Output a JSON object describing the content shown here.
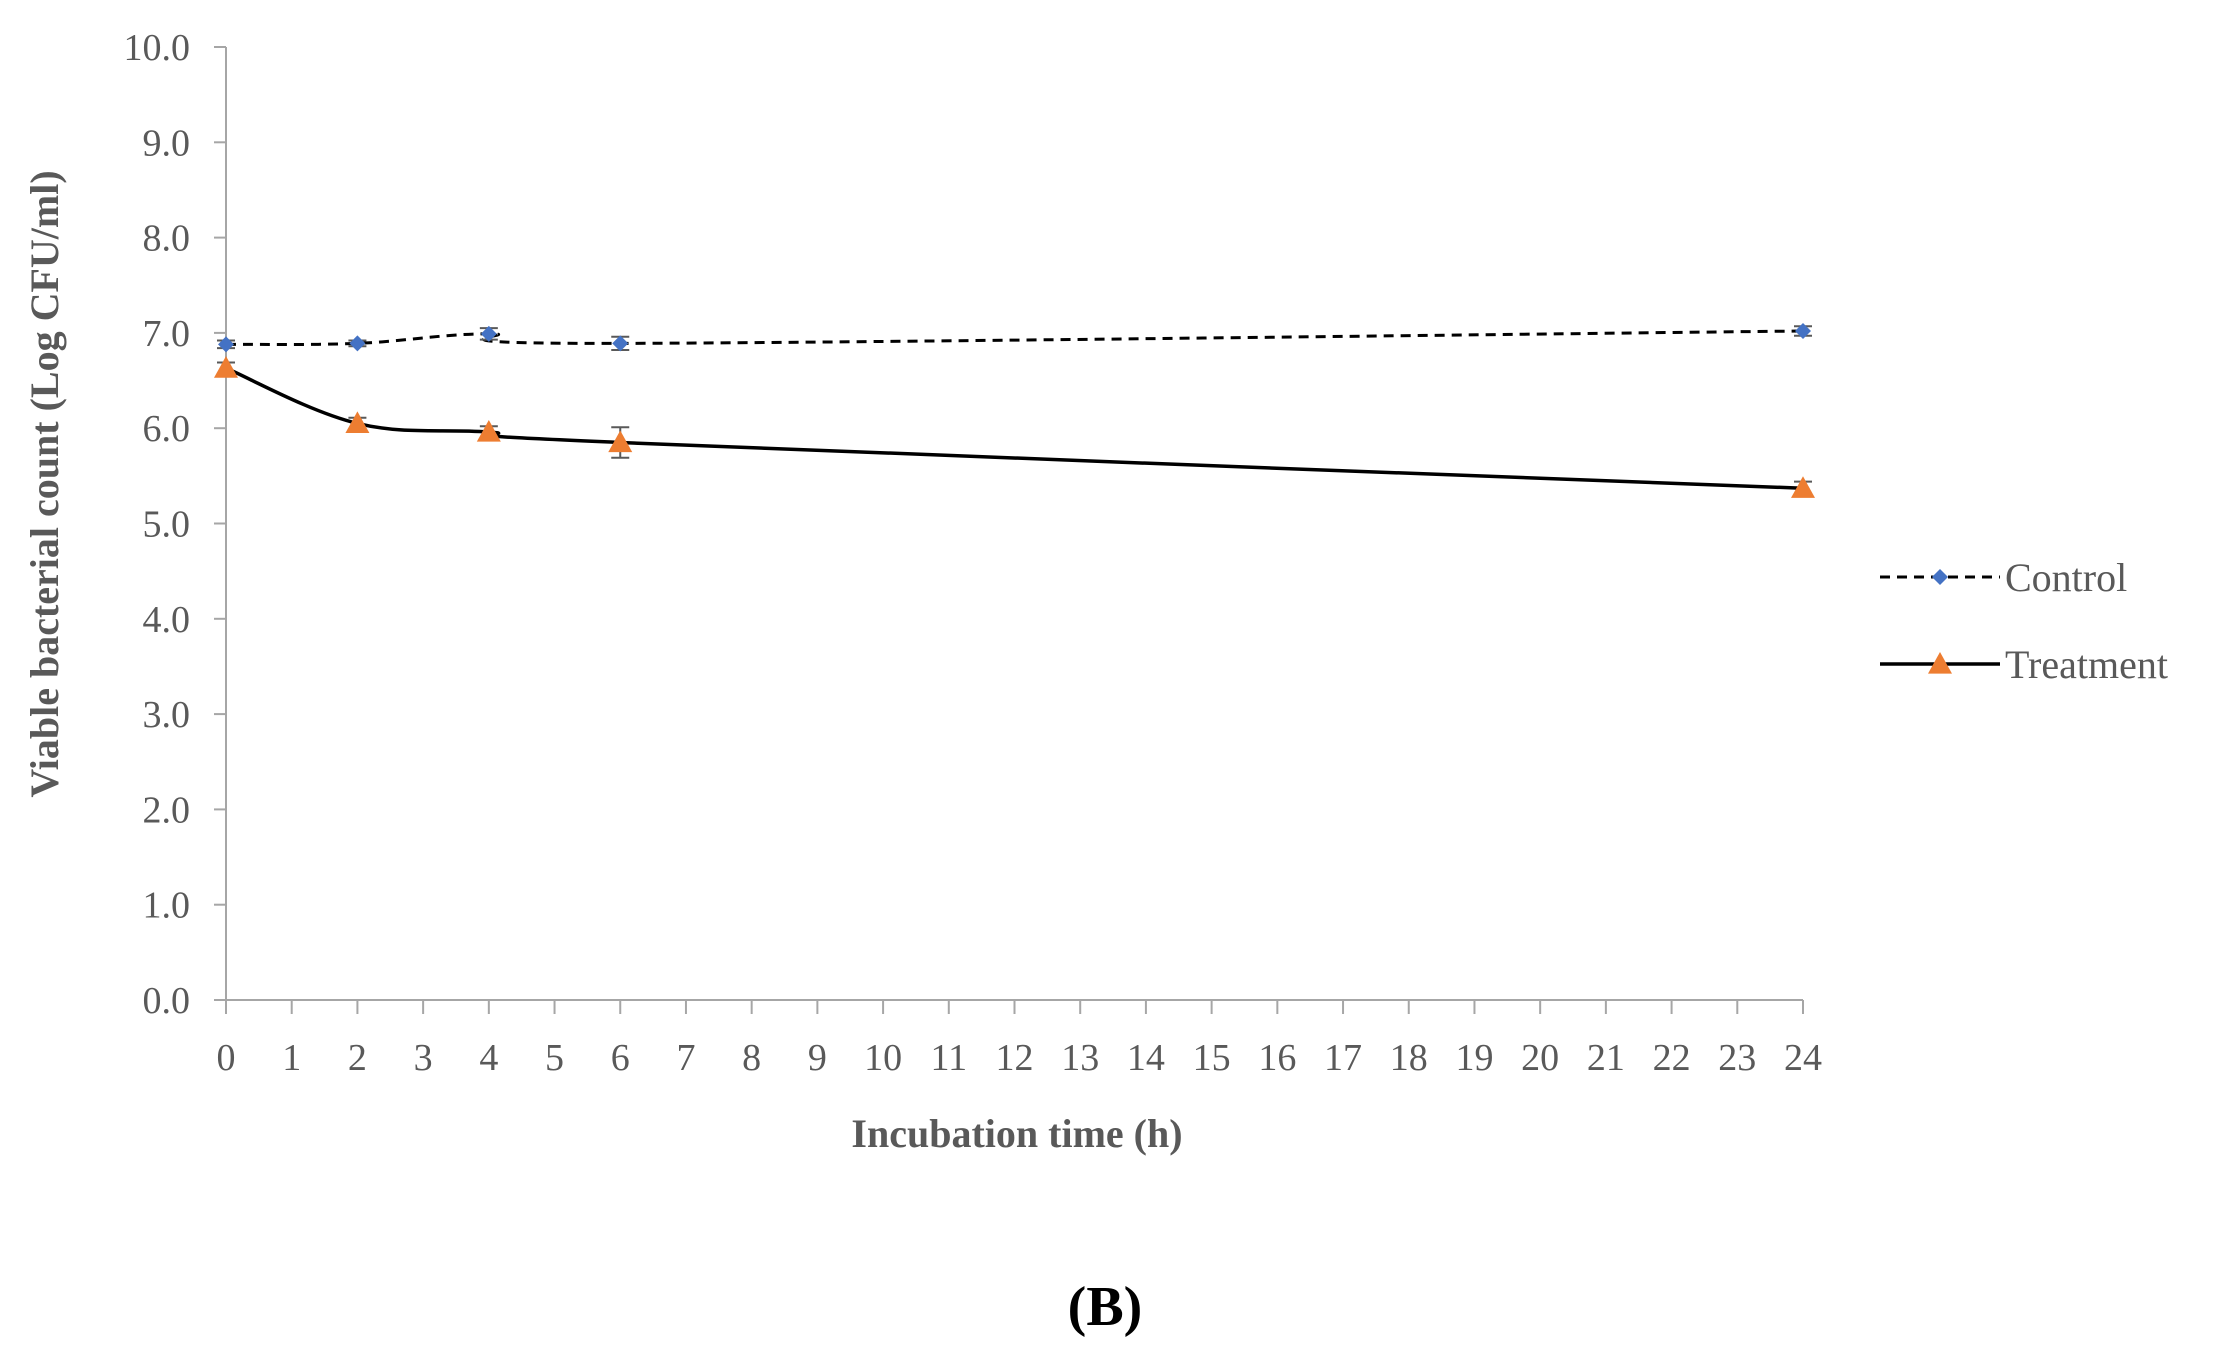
{
  "chart_data": {
    "type": "line",
    "title": "",
    "panel_label": "(B)",
    "xlabel": "Incubation time (h)",
    "ylabel": "Viable bacterial count (Log CFU/ml)",
    "xlim": [
      0,
      24
    ],
    "ylim": [
      0,
      10
    ],
    "x_ticks": [
      "0",
      "1",
      "2",
      "3",
      "4",
      "5",
      "6",
      "7",
      "8",
      "9",
      "10",
      "11",
      "12",
      "13",
      "14",
      "15",
      "16",
      "17",
      "18",
      "19",
      "20",
      "21",
      "22",
      "23",
      "24"
    ],
    "y_ticks": [
      "0.0",
      "1.0",
      "2.0",
      "3.0",
      "4.0",
      "5.0",
      "6.0",
      "7.0",
      "8.0",
      "9.0",
      "10.0"
    ],
    "grid": false,
    "legend_position": "right",
    "series": [
      {
        "name": "Control",
        "color": "#4472C4",
        "line_color": "#000000",
        "line_style": "dashed",
        "marker": "diamond",
        "x": [
          0,
          2,
          4,
          6,
          24
        ],
        "y": [
          6.88,
          6.89,
          6.99,
          6.89,
          7.02
        ],
        "error": [
          0.04,
          0.03,
          0.06,
          0.07,
          0.05
        ]
      },
      {
        "name": "Treatment",
        "color": "#ED7D31",
        "line_color": "#000000",
        "line_style": "solid",
        "marker": "triangle",
        "x": [
          0,
          2,
          4,
          6,
          24
        ],
        "y": [
          6.63,
          6.05,
          5.96,
          5.85,
          5.37
        ],
        "error": [
          0.06,
          0.06,
          0.06,
          0.16,
          0.07
        ]
      }
    ]
  }
}
